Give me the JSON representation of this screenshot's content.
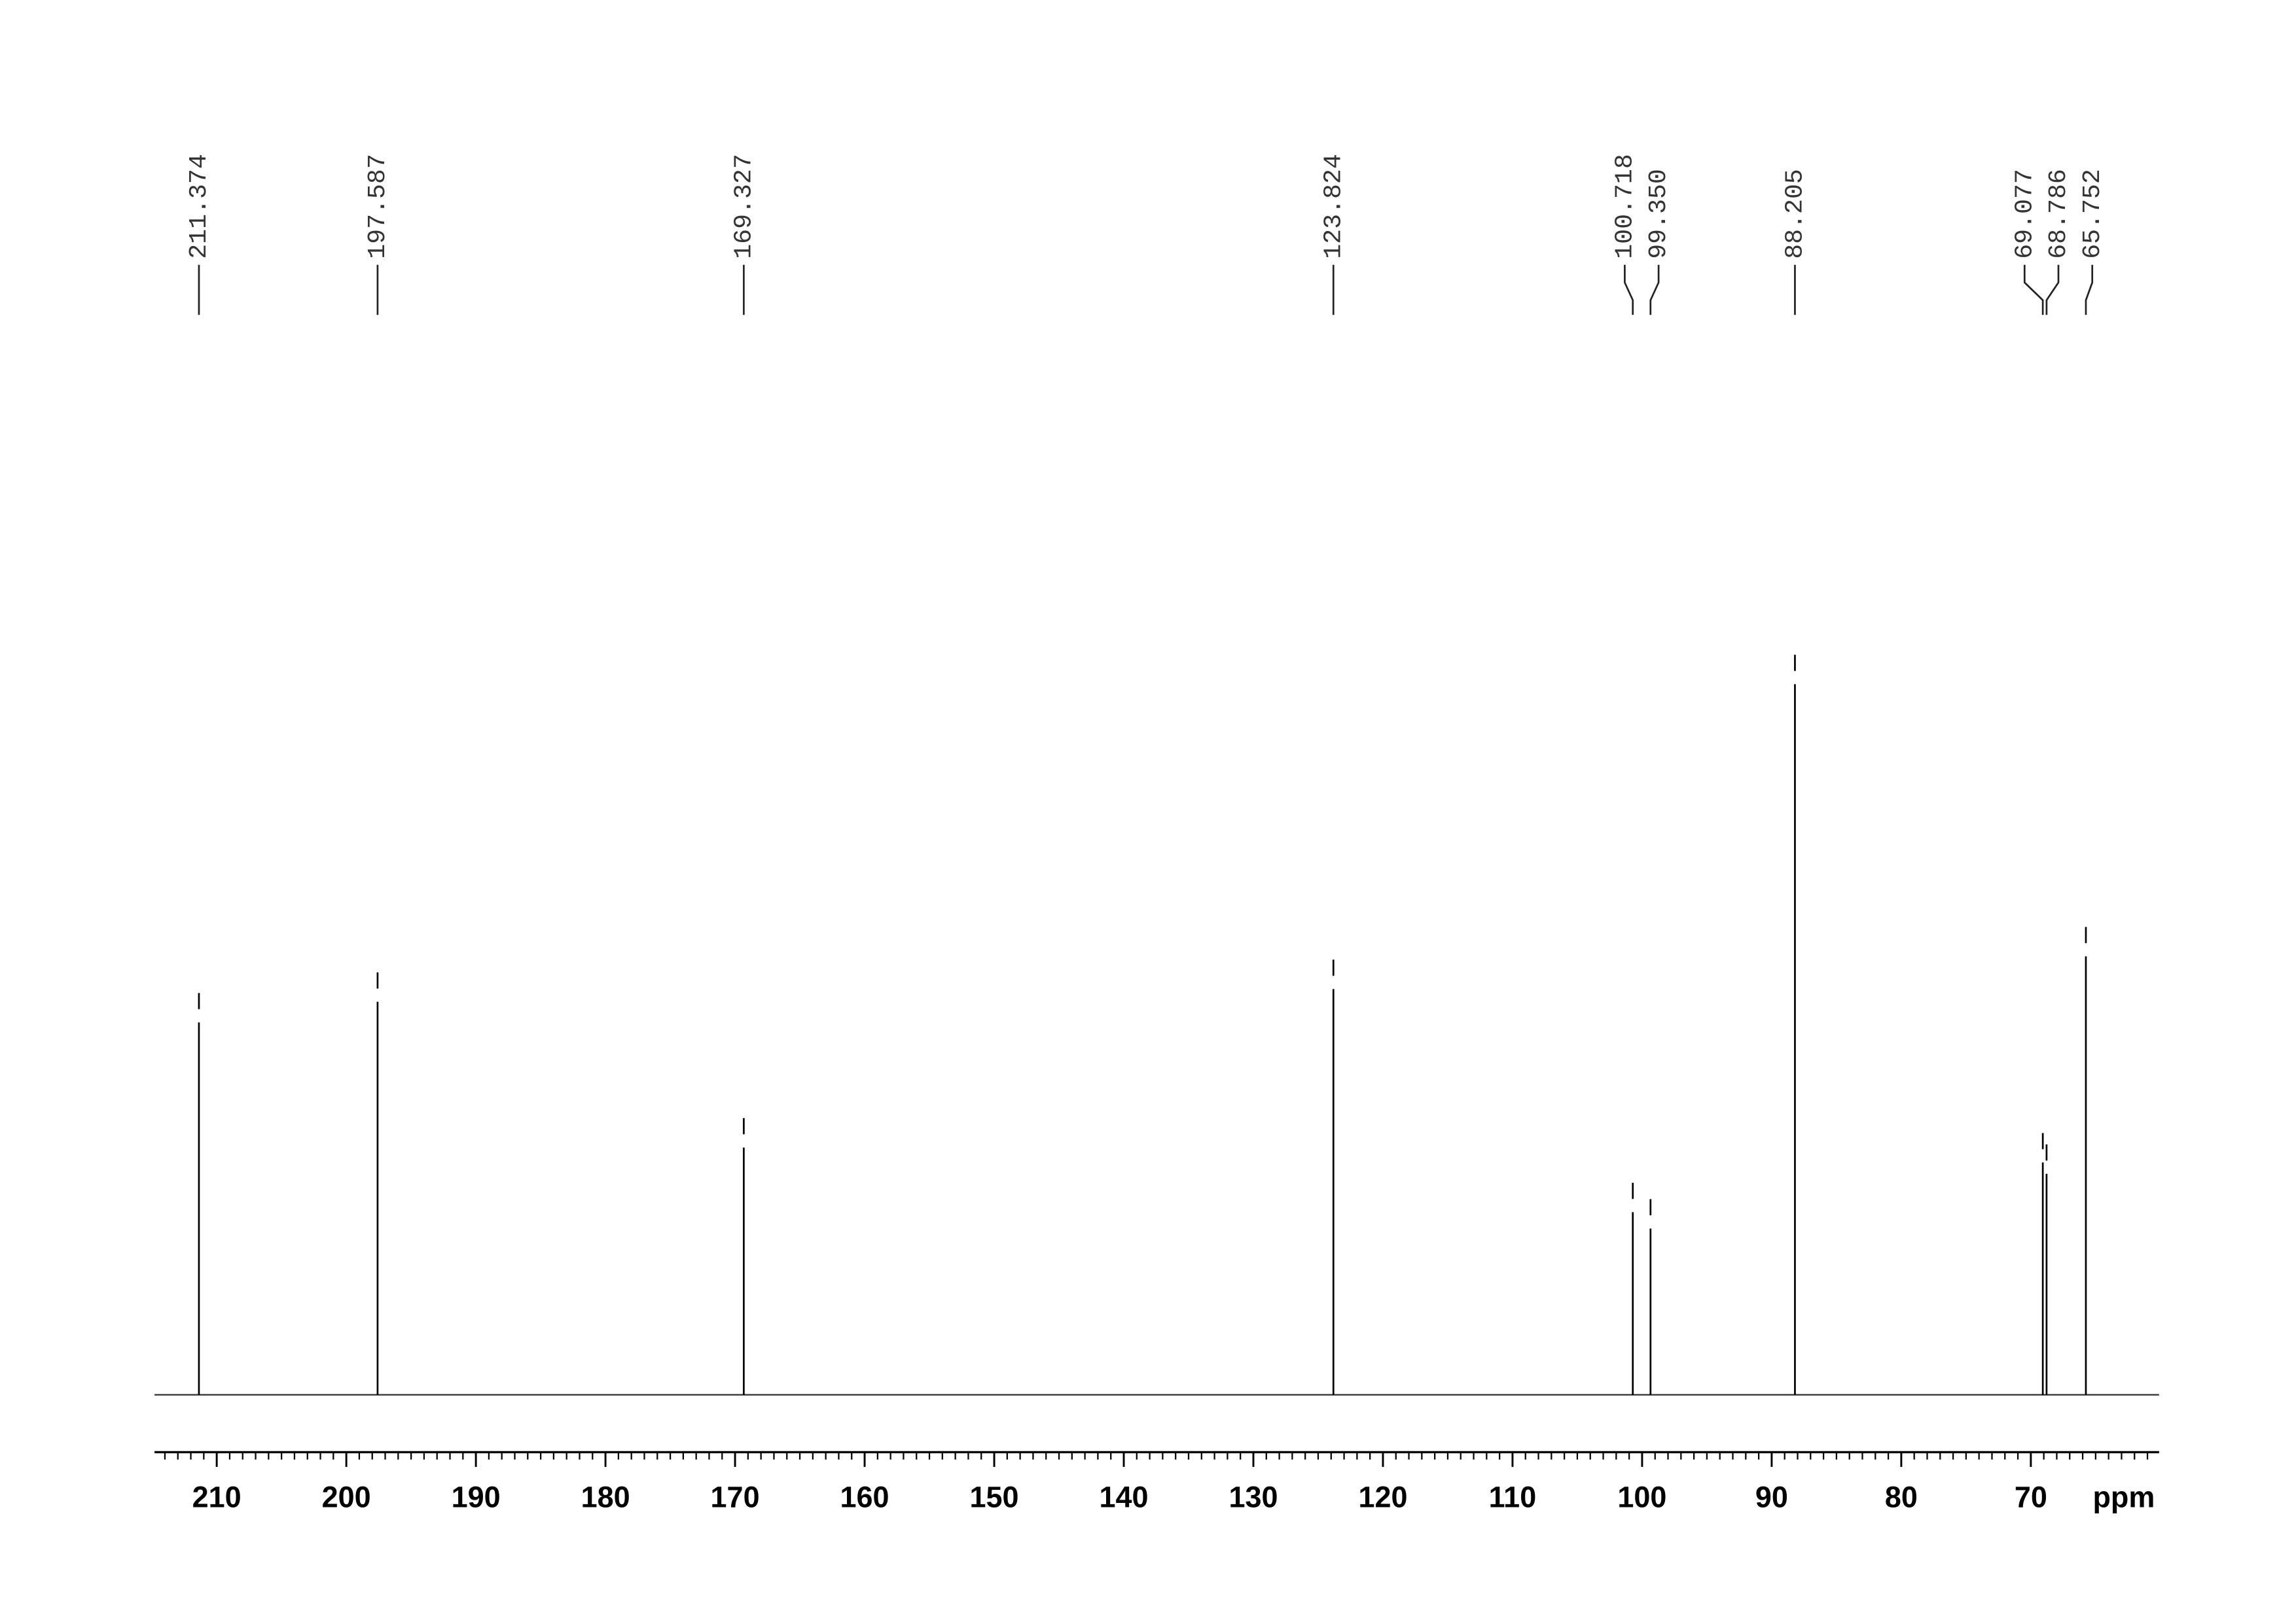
{
  "chart_data": {
    "type": "spectrum",
    "x": [
      211.374,
      197.587,
      169.327,
      123.824,
      100.718,
      99.35,
      88.205,
      69.077,
      68.786,
      65.752
    ],
    "x_labels": [
      "211.374",
      "197.587",
      "169.327",
      "123.824",
      "100.718",
      "99.350",
      "88.205",
      "69.077",
      "68.786",
      "65.752"
    ],
    "values": [
      52.4,
      55.3,
      34.8,
      57.1,
      25.7,
      23.4,
      100,
      32.7,
      31.1,
      61.7
    ],
    "color": "#000000",
    "xlabel": "ppm",
    "xlim": [
      214.8,
      60.1
    ],
    "xticks": [
      210,
      200,
      190,
      180,
      170,
      160,
      150,
      140,
      130,
      120,
      110,
      100,
      90,
      80,
      70
    ],
    "xminorticks": [
      61,
      62,
      63,
      64,
      65,
      66,
      67,
      68,
      69,
      70,
      71,
      72,
      73,
      74,
      75,
      76,
      77,
      78,
      79,
      80,
      81,
      82,
      83,
      84,
      85,
      86,
      87,
      88,
      89,
      90,
      91,
      92,
      93,
      94,
      95,
      96,
      97,
      98,
      99,
      100,
      101,
      102,
      103,
      104,
      105,
      106,
      107,
      108,
      109,
      110,
      111,
      112,
      113,
      114,
      115,
      116,
      117,
      118,
      119,
      120,
      121,
      122,
      123,
      124,
      125,
      126,
      127,
      128,
      129,
      130,
      131,
      132,
      133,
      134,
      135,
      136,
      137,
      138,
      139,
      140,
      141,
      142,
      143,
      144,
      145,
      146,
      147,
      148,
      149,
      150,
      151,
      152,
      153,
      154,
      155,
      156,
      157,
      158,
      159,
      160,
      161,
      162,
      163,
      164,
      165,
      166,
      167,
      168,
      169,
      170,
      171,
      172,
      173,
      174,
      175,
      176,
      177,
      178,
      179,
      180,
      181,
      182,
      183,
      184,
      185,
      186,
      187,
      188,
      189,
      190,
      191,
      192,
      193,
      194,
      195,
      196,
      197,
      198,
      199,
      200,
      201,
      202,
      203,
      204,
      205,
      206,
      207,
      208,
      209,
      210,
      211,
      212,
      213,
      214
    ]
  }
}
